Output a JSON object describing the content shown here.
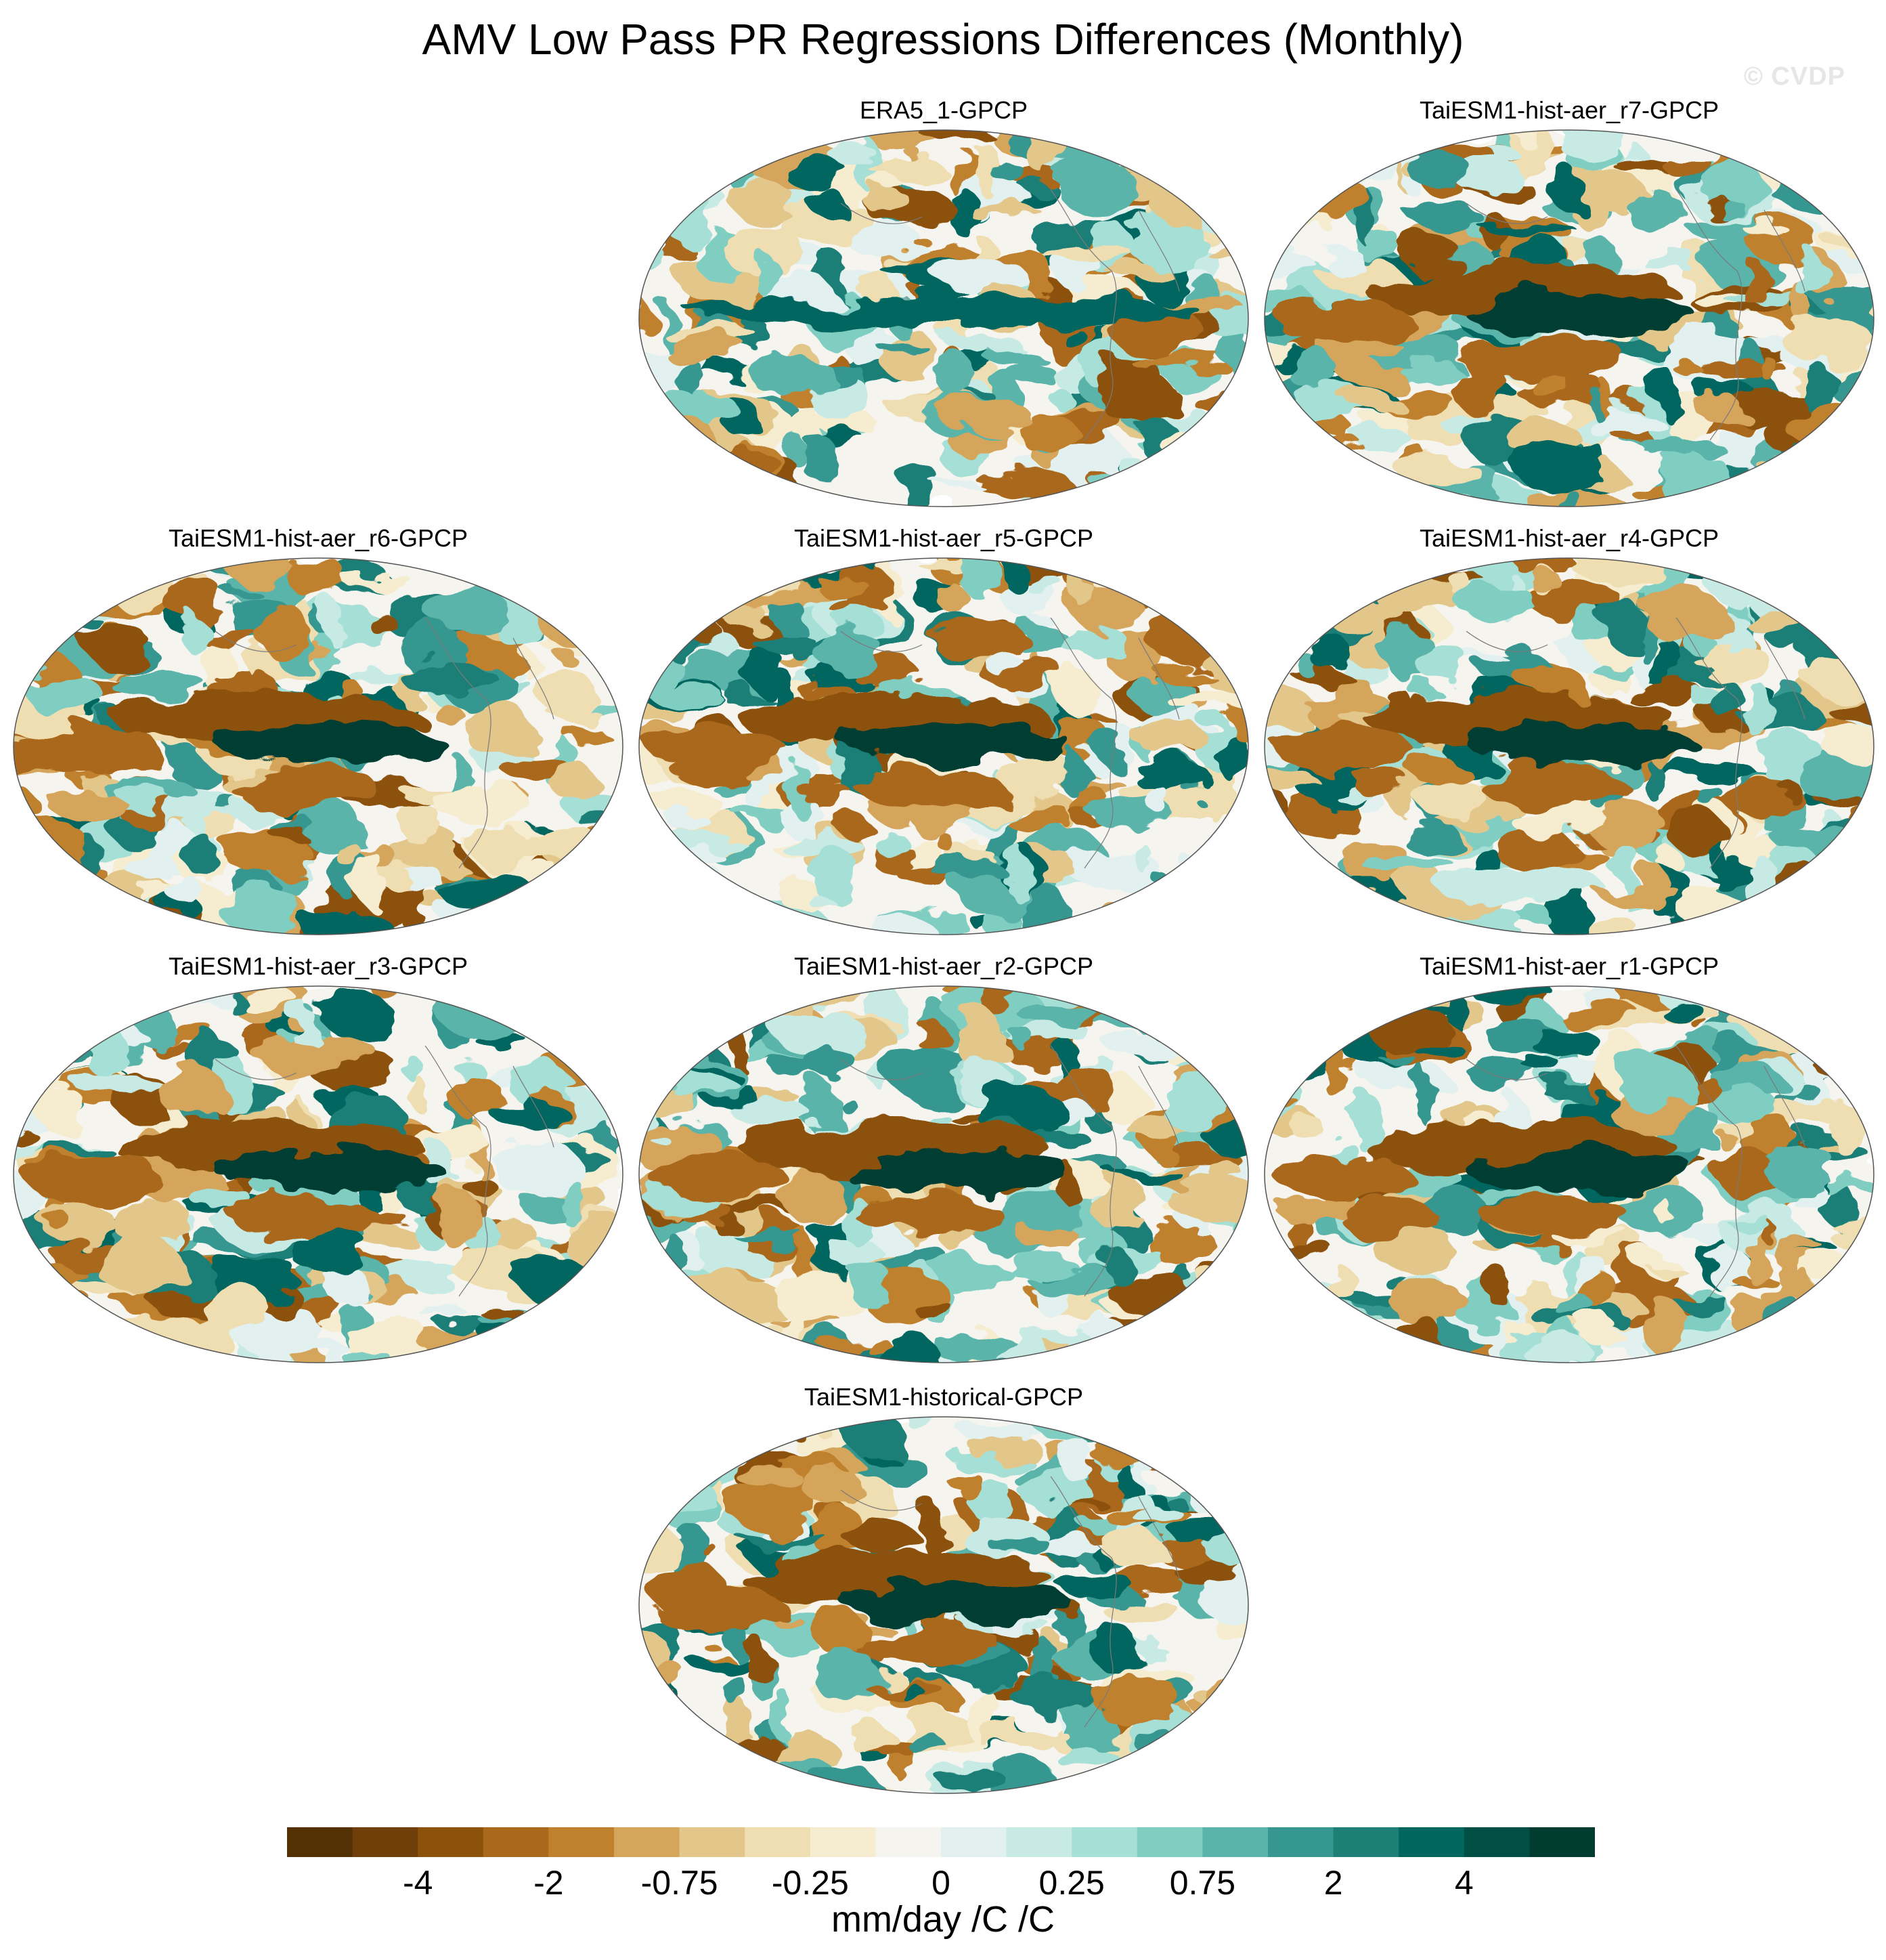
{
  "title": "AMV Low Pass PR Regressions Differences (Monthly)",
  "watermark": "© CVDP",
  "panels": [
    {
      "label": "ERA5_1-GPCP",
      "seed": 3,
      "pattern": "era5"
    },
    {
      "label": "TaiESM1-hist-aer_r7-GPCP",
      "seed": 7,
      "pattern": "model"
    },
    {
      "label": "TaiESM1-hist-aer_r6-GPCP",
      "seed": 6,
      "pattern": "model"
    },
    {
      "label": "TaiESM1-hist-aer_r5-GPCP",
      "seed": 5,
      "pattern": "model"
    },
    {
      "label": "TaiESM1-hist-aer_r4-GPCP",
      "seed": 4,
      "pattern": "model"
    },
    {
      "label": "TaiESM1-hist-aer_r3-GPCP",
      "seed": 13,
      "pattern": "model"
    },
    {
      "label": "TaiESM1-hist-aer_r2-GPCP",
      "seed": 2,
      "pattern": "model"
    },
    {
      "label": "TaiESM1-hist-aer_r1-GPCP",
      "seed": 11,
      "pattern": "model"
    },
    {
      "label": "TaiESM1-historical-GPCP",
      "seed": 9,
      "pattern": "model"
    }
  ],
  "colorbar": {
    "units": "mm/day /C /C",
    "colors": [
      "#543005",
      "#6f3e09",
      "#8c510a",
      "#a9681c",
      "#bf812d",
      "#d4a55a",
      "#e3c78a",
      "#efdeb2",
      "#f6ecd0",
      "#f5f4ef",
      "#e2f1ef",
      "#c7eae5",
      "#a6dfd5",
      "#80cdc1",
      "#5ab4aa",
      "#35978f",
      "#1e7f77",
      "#01665e",
      "#014e44",
      "#003c30"
    ],
    "levels": [
      "-4",
      "-2",
      "-0.75",
      "-0.25",
      "0",
      "0.25",
      "0.75",
      "2",
      "4"
    ]
  }
}
